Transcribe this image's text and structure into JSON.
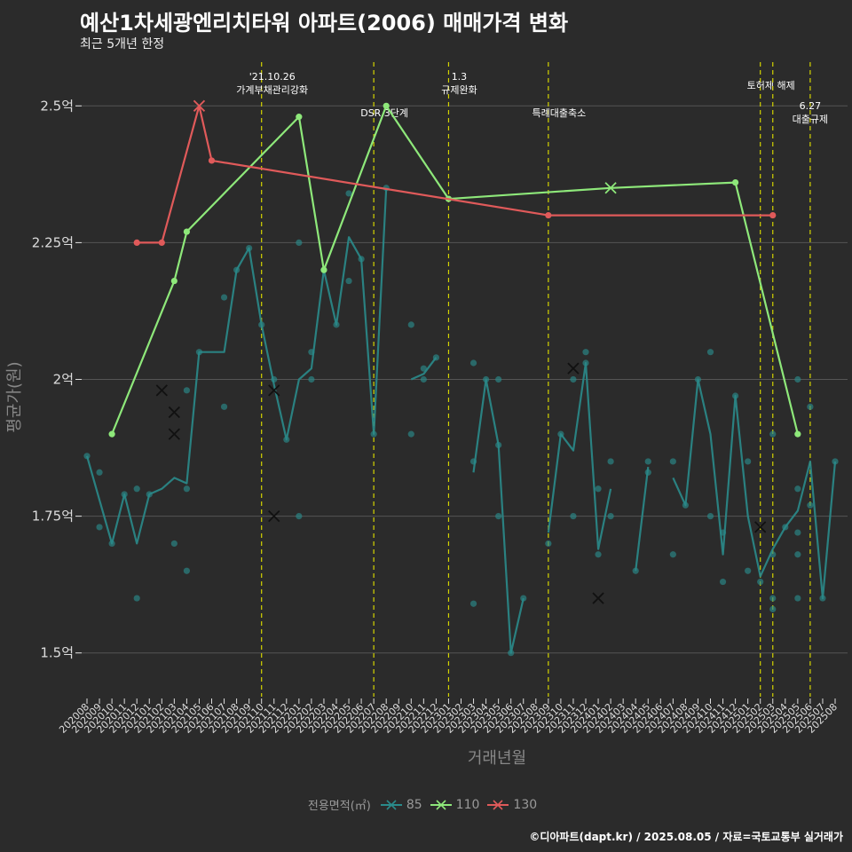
{
  "title": "예산1차세광엔리치타워 아파트(2006) 매매가격 변화",
  "subtitle": "최근 5개년 한정",
  "caption": "©디아파트(dapt.kr) / 2025.08.05 / 자료=국토교통부 실거래가",
  "legend_title": "전용면적(㎡)",
  "colors": {
    "s85": "#2a8b8b",
    "s110": "#8ee87a",
    "s130": "#e05a5a",
    "vline": "#d4d400",
    "grid": "#555555",
    "axis_text": "#dddddd",
    "axis_title": "#888888"
  },
  "chart_data": {
    "type": "line",
    "xlabel": "거래년월",
    "ylabel": "평균가(원)",
    "ylim": [
      1.42,
      2.58
    ],
    "yticks": [
      1.5,
      1.75,
      2.0,
      2.25,
      2.5
    ],
    "ytick_labels": [
      "1.5억",
      "1.75억",
      "2억",
      "2.25억",
      "2.5억"
    ],
    "categories": [
      "202008",
      "202009",
      "202010",
      "202011",
      "202012",
      "202101",
      "202102",
      "202103",
      "202104",
      "202105",
      "202106",
      "202107",
      "202108",
      "202109",
      "202110",
      "202111",
      "202112",
      "202201",
      "202202",
      "202203",
      "202204",
      "202205",
      "202206",
      "202207",
      "202208",
      "202209",
      "202210",
      "202211",
      "202212",
      "202301",
      "202302",
      "202303",
      "202304",
      "202305",
      "202306",
      "202307",
      "202308",
      "202309",
      "202310",
      "202311",
      "202312",
      "202401",
      "202402",
      "202403",
      "202404",
      "202405",
      "202406",
      "202407",
      "202408",
      "202409",
      "202410",
      "202411",
      "202412",
      "202501",
      "202502",
      "202503",
      "202504",
      "202505",
      "202506",
      "202507",
      "202508"
    ],
    "events": [
      {
        "x": 14.0,
        "lines": [
          "'21.10.26",
          "가계부채관리강화"
        ],
        "row": 0
      },
      {
        "x": 23.0,
        "lines": [
          "DSR 3단계"
        ],
        "row": 2
      },
      {
        "x": 29.0,
        "lines": [
          "1.3",
          "규제완화"
        ],
        "row": 0
      },
      {
        "x": 37.0,
        "lines": [
          "특례대출축소"
        ],
        "row": 2
      },
      {
        "x": 54.0,
        "lines": [
          "토허제 해제"
        ],
        "row": 1
      },
      {
        "x": 55.0,
        "lines": [],
        "row": 1
      },
      {
        "x": 58.0,
        "lines": [
          "6.27",
          "대출규제"
        ],
        "row": 3
      }
    ],
    "series": [
      {
        "name": "85",
        "key": "s85",
        "line": [
          [
            0,
            1.86
          ],
          [
            1,
            1.78
          ],
          [
            2,
            1.7
          ],
          [
            3,
            1.79
          ],
          [
            4,
            1.7
          ],
          [
            5,
            1.79
          ],
          [
            6,
            1.8
          ],
          [
            7,
            1.82
          ],
          [
            8,
            1.81
          ],
          [
            9,
            2.05
          ],
          [
            10,
            2.05
          ],
          [
            11,
            2.05
          ],
          [
            12,
            2.2
          ],
          [
            13,
            2.24
          ],
          [
            14,
            2.1
          ],
          [
            15,
            1.99
          ],
          [
            16,
            1.89
          ],
          [
            17,
            2.0
          ],
          [
            18,
            2.02
          ],
          [
            19,
            2.2
          ],
          [
            20,
            2.1
          ],
          [
            21,
            2.26
          ],
          [
            22,
            2.22
          ],
          [
            23,
            1.9
          ],
          [
            24,
            2.35
          ],
          null,
          [
            26,
            2.0
          ],
          [
            27,
            2.01
          ],
          [
            28,
            2.04
          ],
          null,
          [
            31,
            1.83
          ],
          [
            32,
            2.0
          ],
          [
            33,
            1.88
          ],
          [
            34,
            1.5
          ],
          [
            35,
            1.6
          ],
          null,
          [
            37,
            1.72
          ],
          [
            38,
            1.9
          ],
          [
            39,
            1.87
          ],
          [
            40,
            2.03
          ],
          [
            41,
            1.69
          ],
          [
            42,
            1.8
          ],
          null,
          [
            44,
            1.65
          ],
          [
            45,
            1.84
          ],
          null,
          [
            47,
            1.82
          ],
          [
            48,
            1.77
          ],
          [
            49,
            2.0
          ],
          [
            50,
            1.9
          ],
          [
            51,
            1.68
          ],
          [
            52,
            1.97
          ],
          [
            53,
            1.75
          ],
          [
            54,
            1.64
          ],
          [
            55,
            1.69
          ],
          [
            56,
            1.73
          ],
          [
            57,
            1.76
          ],
          [
            58,
            1.85
          ],
          [
            59,
            1.6
          ],
          [
            60,
            1.85
          ]
        ],
        "points": [
          [
            0,
            1.86
          ],
          [
            1,
            1.83
          ],
          [
            1,
            1.73
          ],
          [
            2,
            1.7
          ],
          [
            3,
            1.79
          ],
          [
            4,
            1.8
          ],
          [
            4,
            1.6
          ],
          [
            5,
            1.79
          ],
          [
            7,
            1.7
          ],
          [
            8,
            1.98
          ],
          [
            8,
            1.8
          ],
          [
            8,
            1.65
          ],
          [
            9,
            2.05
          ],
          [
            11,
            2.15
          ],
          [
            11,
            1.95
          ],
          [
            12,
            2.2
          ],
          [
            13,
            2.24
          ],
          [
            14,
            2.1
          ],
          [
            15,
            2.0
          ],
          [
            16,
            1.89
          ],
          [
            17,
            2.25
          ],
          [
            17,
            1.75
          ],
          [
            18,
            2.05
          ],
          [
            18,
            2.0
          ],
          [
            19,
            2.2
          ],
          [
            20,
            2.1
          ],
          [
            21,
            2.34
          ],
          [
            21,
            2.18
          ],
          [
            22,
            2.22
          ],
          [
            23,
            1.9
          ],
          [
            24,
            2.35
          ],
          [
            26,
            2.1
          ],
          [
            26,
            1.9
          ],
          [
            27,
            2.02
          ],
          [
            27,
            2.0
          ],
          [
            28,
            2.04
          ],
          [
            31,
            2.03
          ],
          [
            31,
            1.85
          ],
          [
            31,
            1.59
          ],
          [
            32,
            2.0
          ],
          [
            33,
            2.0
          ],
          [
            33,
            1.88
          ],
          [
            33,
            1.75
          ],
          [
            34,
            1.5
          ],
          [
            35,
            1.6
          ],
          [
            37,
            1.7
          ],
          [
            38,
            1.9
          ],
          [
            39,
            2.0
          ],
          [
            39,
            1.75
          ],
          [
            40,
            2.05
          ],
          [
            40,
            2.03
          ],
          [
            41,
            1.8
          ],
          [
            41,
            1.68
          ],
          [
            42,
            1.85
          ],
          [
            42,
            1.75
          ],
          [
            44,
            1.65
          ],
          [
            45,
            1.85
          ],
          [
            45,
            1.83
          ],
          [
            47,
            1.85
          ],
          [
            47,
            1.68
          ],
          [
            48,
            1.77
          ],
          [
            49,
            2.0
          ],
          [
            50,
            2.05
          ],
          [
            50,
            1.75
          ],
          [
            51,
            1.72
          ],
          [
            51,
            1.63
          ],
          [
            52,
            1.97
          ],
          [
            53,
            1.85
          ],
          [
            53,
            1.65
          ],
          [
            54,
            1.63
          ],
          [
            55,
            1.9
          ],
          [
            55,
            1.68
          ],
          [
            55,
            1.6
          ],
          [
            55,
            1.58
          ],
          [
            56,
            1.73
          ],
          [
            57,
            2.0
          ],
          [
            57,
            1.8
          ],
          [
            57,
            1.72
          ],
          [
            57,
            1.68
          ],
          [
            57,
            1.6
          ],
          [
            58,
            1.95
          ],
          [
            58,
            1.77
          ],
          [
            59,
            1.6
          ],
          [
            60,
            1.85
          ]
        ],
        "crosses": [
          [
            6,
            1.98
          ],
          [
            7,
            1.94
          ],
          [
            7,
            1.9
          ],
          [
            15,
            1.98
          ],
          [
            15,
            1.75
          ],
          [
            39,
            2.02
          ],
          [
            41,
            1.6
          ],
          [
            54,
            1.73
          ]
        ]
      },
      {
        "name": "110",
        "key": "s110",
        "line": [
          [
            2,
            1.9
          ],
          [
            7,
            2.18
          ],
          [
            8,
            2.27
          ],
          [
            17,
            2.48
          ],
          [
            19,
            2.2
          ],
          [
            24,
            2.5
          ],
          [
            29,
            2.33
          ],
          [
            42,
            2.35
          ],
          [
            52,
            2.36
          ],
          [
            57,
            1.9
          ]
        ],
        "points": [
          [
            2,
            1.9
          ],
          [
            7,
            2.18
          ],
          [
            8,
            2.27
          ],
          [
            17,
            2.48
          ],
          [
            19,
            2.2
          ],
          [
            24,
            2.5
          ],
          [
            29,
            2.33
          ],
          [
            52,
            2.36
          ],
          [
            57,
            1.9
          ]
        ],
        "crosses": [
          [
            42,
            2.35
          ]
        ]
      },
      {
        "name": "130",
        "key": "s130",
        "line": [
          [
            4,
            2.25
          ],
          [
            6,
            2.25
          ],
          [
            9,
            2.5
          ],
          [
            10,
            2.4
          ],
          [
            37,
            2.3
          ],
          [
            55,
            2.3
          ]
        ],
        "points": [
          [
            4,
            2.25
          ],
          [
            6,
            2.25
          ],
          [
            10,
            2.4
          ],
          [
            37,
            2.3
          ],
          [
            55,
            2.3
          ]
        ],
        "crosses": [
          [
            9,
            2.5
          ]
        ]
      }
    ]
  }
}
